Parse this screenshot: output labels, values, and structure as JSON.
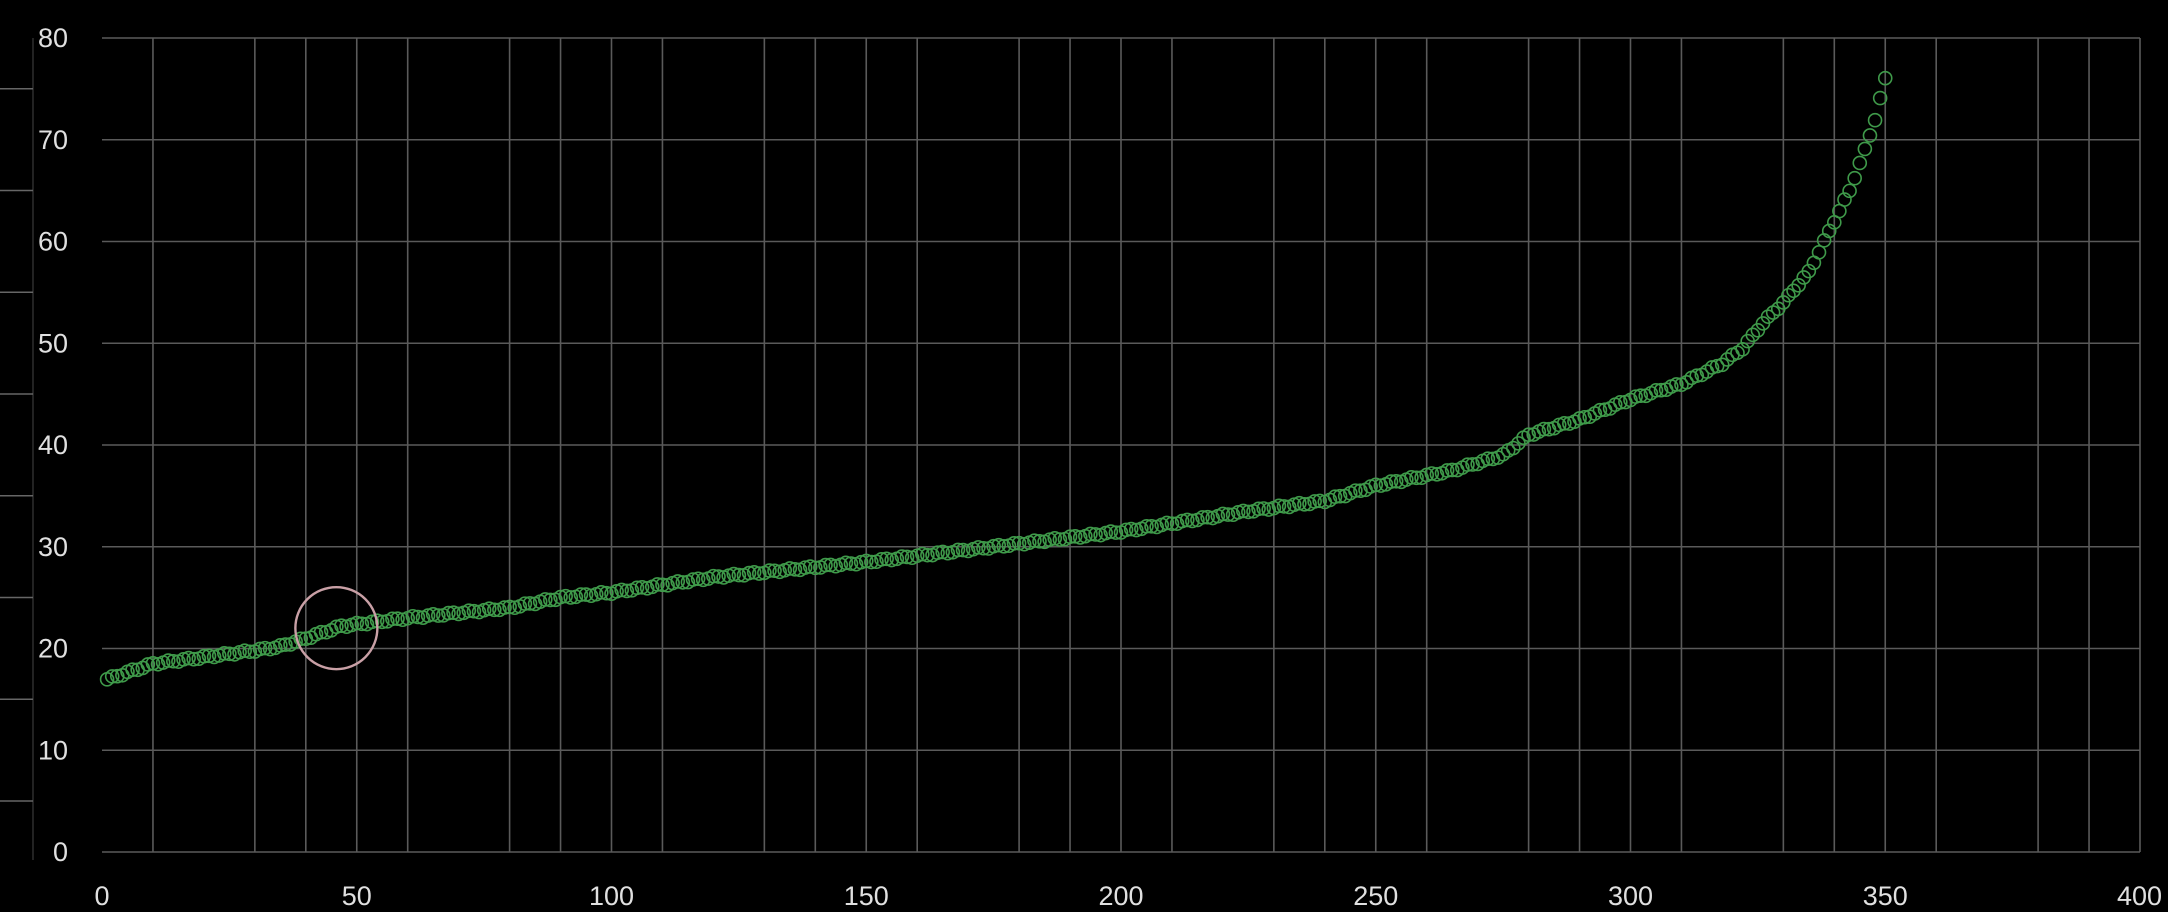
{
  "chart_data": {
    "type": "scatter",
    "title": "",
    "xlabel": "",
    "ylabel": "",
    "xlim": [
      0,
      400
    ],
    "ylim": [
      0,
      80
    ],
    "x_ticks": [
      0,
      50,
      100,
      150,
      200,
      250,
      300,
      350,
      400
    ],
    "x_tick_labels": [
      "0",
      "50",
      "100",
      "150",
      "200",
      "250",
      "300",
      "350",
      "400"
    ],
    "y_ticks": [
      0,
      10,
      20,
      30,
      40,
      50,
      60,
      70,
      80
    ],
    "y_tick_labels": [
      "0",
      "10",
      "20",
      "30",
      "40",
      "50",
      "60",
      "70",
      "80"
    ],
    "vertical_gridlines": [
      10,
      30,
      40,
      50,
      60,
      80,
      90,
      100,
      110,
      130,
      140,
      150,
      160,
      180,
      190,
      200,
      210,
      230,
      240,
      250,
      260,
      280,
      290,
      300,
      310,
      330,
      340,
      350,
      360,
      380,
      390,
      400
    ],
    "grid": true,
    "legend": "none",
    "colors": {
      "background": "#000000",
      "grid": "#5a5a5a",
      "marker": "#3f9a4a",
      "highlight_circle": "#c9a0a6",
      "tick_text": "#e0e0e0"
    },
    "series": [
      {
        "marker": "hollow-circle",
        "anchors_x": [
          0,
          10,
          30,
          35,
          40,
          47,
          60,
          80,
          90,
          100,
          120,
          150,
          175,
          200,
          225,
          240,
          250,
          265,
          275,
          280,
          290,
          300,
          310,
          318,
          322,
          326,
          330,
          335,
          340,
          343,
          346,
          348,
          350
        ],
        "anchors_y": [
          16.8,
          18.5,
          19.8,
          20.2,
          21.0,
          22.2,
          23.0,
          24.0,
          25.0,
          25.5,
          27.0,
          28.5,
          30.0,
          31.5,
          33.5,
          34.5,
          36.0,
          37.5,
          39.0,
          41.0,
          42.5,
          44.5,
          46.0,
          48.0,
          49.5,
          52.0,
          54.0,
          57.0,
          62.0,
          65.0,
          69.0,
          72.0,
          76.0
        ],
        "n_points": 350,
        "x_start": 1,
        "x_end": 350
      }
    ],
    "annotations": [
      {
        "type": "circle",
        "x": 46,
        "y": 22.0
      }
    ]
  }
}
